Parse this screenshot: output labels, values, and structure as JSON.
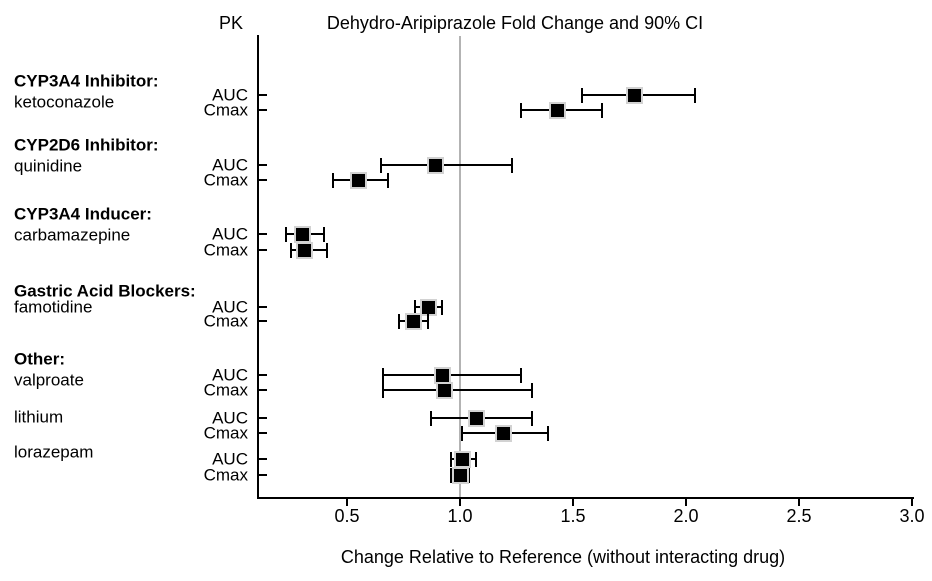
{
  "header": {
    "pk_label": "PK"
  },
  "colors": {
    "marker": "#000000",
    "axis": "#000000",
    "reference_line": "#b3b3b3",
    "marker_halo": "#d2d2d2",
    "background": "#ffffff",
    "text": "#000000"
  },
  "chart_data": {
    "type": "scatter",
    "subtype": "forest-plot",
    "title": "Dehydro-Aripiprazole Fold Change and 90% CI",
    "xlabel": "Change Relative to Reference (without interacting drug)",
    "ylabel": "",
    "ci_level": "90% CI",
    "reference_value": 1.0,
    "x_ticks": [
      0.5,
      1.0,
      1.5,
      2.0,
      2.5,
      3.0
    ],
    "xlim": [
      0.1,
      3.0
    ],
    "grid": false,
    "legend": "none",
    "groups": [
      {
        "label": "CYP3A4 Inhibitor:",
        "drugs": [
          {
            "name": "ketoconazole",
            "rows": [
              {
                "measure": "AUC",
                "estimate": 1.77,
                "ci_low": 1.54,
                "ci_high": 2.04
              },
              {
                "measure": "Cmax",
                "estimate": 1.43,
                "ci_low": 1.27,
                "ci_high": 1.63
              }
            ]
          }
        ]
      },
      {
        "label": "CYP2D6 Inhibitor:",
        "drugs": [
          {
            "name": "quinidine",
            "rows": [
              {
                "measure": "AUC",
                "estimate": 0.89,
                "ci_low": 0.65,
                "ci_high": 1.23
              },
              {
                "measure": "Cmax",
                "estimate": 0.55,
                "ci_low": 0.44,
                "ci_high": 0.68
              }
            ]
          }
        ]
      },
      {
        "label": "CYP3A4 Inducer:",
        "drugs": [
          {
            "name": "carbamazepine",
            "rows": [
              {
                "measure": "AUC",
                "estimate": 0.3,
                "ci_low": 0.23,
                "ci_high": 0.4
              },
              {
                "measure": "Cmax",
                "estimate": 0.31,
                "ci_low": 0.25,
                "ci_high": 0.41
              }
            ]
          }
        ]
      },
      {
        "label": "Gastric Acid Blockers:",
        "drugs": [
          {
            "name": "famotidine",
            "rows": [
              {
                "measure": "AUC",
                "estimate": 0.86,
                "ci_low": 0.8,
                "ci_high": 0.92
              },
              {
                "measure": "Cmax",
                "estimate": 0.79,
                "ci_low": 0.73,
                "ci_high": 0.86
              }
            ]
          }
        ]
      },
      {
        "label": "Other:",
        "drugs": [
          {
            "name": "valproate",
            "rows": [
              {
                "measure": "AUC",
                "estimate": 0.92,
                "ci_low": 0.66,
                "ci_high": 1.27
              },
              {
                "measure": "Cmax",
                "estimate": 0.93,
                "ci_low": 0.66,
                "ci_high": 1.32
              }
            ]
          },
          {
            "name": "lithium",
            "rows": [
              {
                "measure": "AUC",
                "estimate": 1.07,
                "ci_low": 0.87,
                "ci_high": 1.32
              },
              {
                "measure": "Cmax",
                "estimate": 1.19,
                "ci_low": 1.01,
                "ci_high": 1.39
              }
            ]
          },
          {
            "name": "lorazepam",
            "rows": [
              {
                "measure": "AUC",
                "estimate": 1.01,
                "ci_low": 0.96,
                "ci_high": 1.07
              },
              {
                "measure": "Cmax",
                "estimate": 1.0,
                "ci_low": 0.96,
                "ci_high": 1.04
              }
            ]
          }
        ]
      }
    ]
  }
}
